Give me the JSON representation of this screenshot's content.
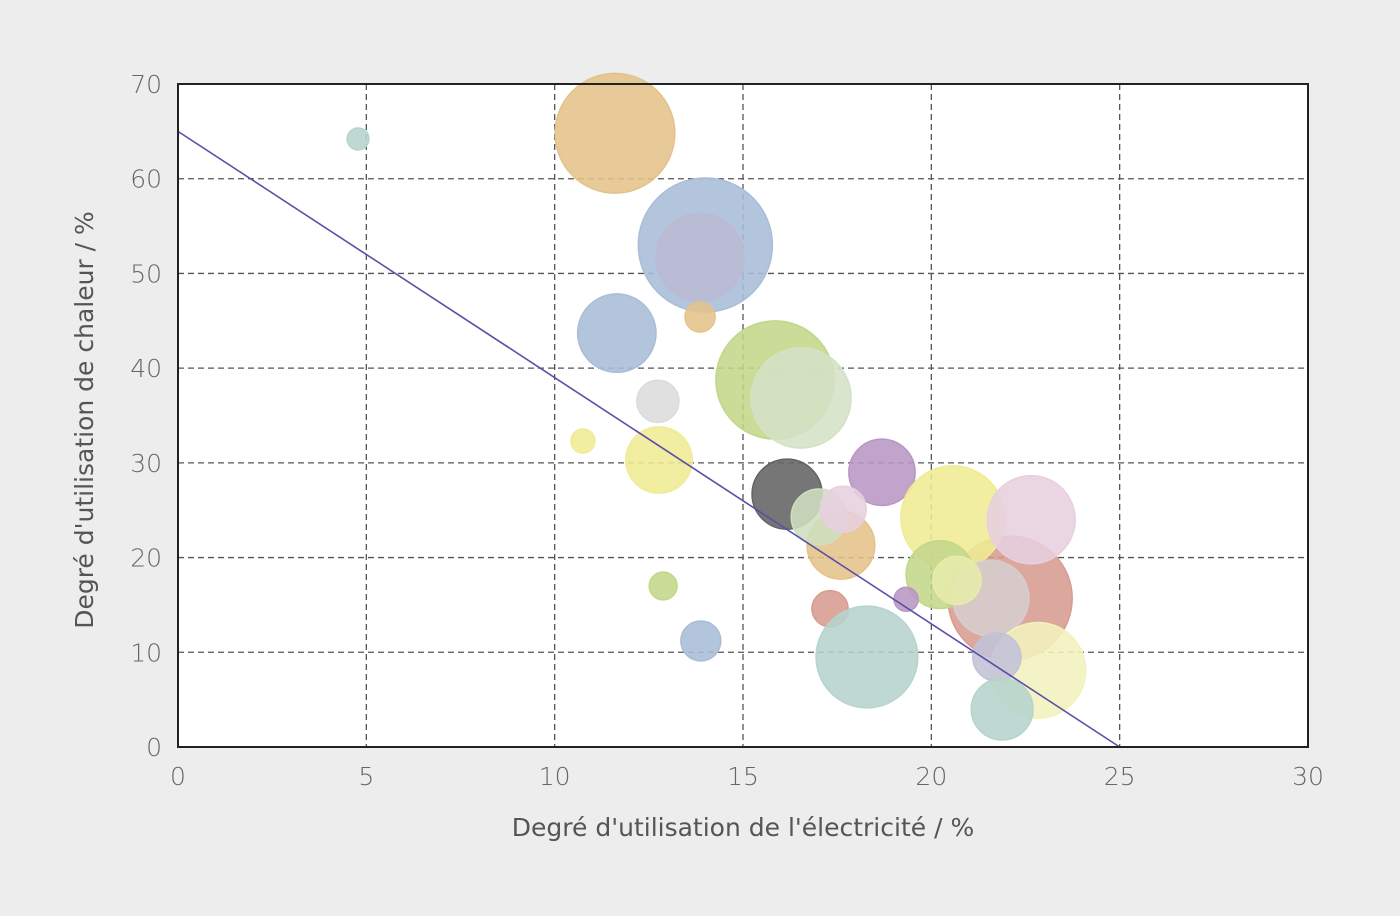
{
  "chart_data": {
    "type": "scatter",
    "subtype": "bubble",
    "xlabel": "Degré d'utilisation de l'électricité / %",
    "ylabel": "Degré d'utilisation de chaleur / %",
    "xlim": [
      0,
      30
    ],
    "ylim": [
      0,
      70
    ],
    "xticks": [
      "0",
      "5",
      "10",
      "15",
      "20",
      "25",
      "30"
    ],
    "yticks": [
      "0",
      "10",
      "20",
      "30",
      "40",
      "50",
      "60",
      "70"
    ],
    "grid": true,
    "grid_style": "dashed",
    "legend": "none",
    "trend_line": {
      "from": [
        0,
        65
      ],
      "to": [
        25,
        0
      ],
      "color": "#5a4fa8"
    },
    "bubbles": [
      {
        "x": 4.78,
        "y": 64.2,
        "size": 0.29,
        "color": "#bcdad3"
      },
      {
        "x": 11.6,
        "y": 64.8,
        "size": 1.59,
        "color": "#ebc88e"
      },
      {
        "x": 14.0,
        "y": 53.0,
        "size": 1.78,
        "color": "#aec3de"
      },
      {
        "x": 13.86,
        "y": 51.7,
        "size": 1.17,
        "color": "#c0c0dc"
      },
      {
        "x": 13.86,
        "y": 45.4,
        "size": 0.4,
        "color": "#ebc88e"
      },
      {
        "x": 11.65,
        "y": 43.7,
        "size": 1.04,
        "color": "#aec3de"
      },
      {
        "x": 15.85,
        "y": 38.75,
        "size": 1.57,
        "color": "#c9dd8e"
      },
      {
        "x": 16.54,
        "y": 36.85,
        "size": 1.33,
        "color": "#dbe8cc"
      },
      {
        "x": 12.74,
        "y": 36.5,
        "size": 0.56,
        "color": "#e2e2e2"
      },
      {
        "x": 10.75,
        "y": 32.3,
        "size": 0.32,
        "color": "#f7f399"
      },
      {
        "x": 12.77,
        "y": 30.3,
        "size": 0.88,
        "color": "#f7f399"
      },
      {
        "x": 16.17,
        "y": 26.7,
        "size": 0.93,
        "color": "#666666"
      },
      {
        "x": 18.69,
        "y": 29.0,
        "size": 0.88,
        "color": "#be9bc9"
      },
      {
        "x": 17.6,
        "y": 21.3,
        "size": 0.9,
        "color": "#ebc88e"
      },
      {
        "x": 17.02,
        "y": 24.3,
        "size": 0.74,
        "color": "#d5e6c6"
      },
      {
        "x": 17.66,
        "y": 25.1,
        "size": 0.61,
        "color": "#eed6e6"
      },
      {
        "x": 22.09,
        "y": 15.7,
        "size": 1.65,
        "color": "#dea094"
      },
      {
        "x": 20.57,
        "y": 24.2,
        "size": 1.38,
        "color": "#f7f399"
      },
      {
        "x": 22.65,
        "y": 24.0,
        "size": 1.17,
        "color": "#eed6e6"
      },
      {
        "x": 20.23,
        "y": 18.2,
        "size": 0.9,
        "color": "#c9dd8e"
      },
      {
        "x": 21.58,
        "y": 15.7,
        "size": 1.01,
        "color": "#ddd4d4"
      },
      {
        "x": 20.68,
        "y": 17.6,
        "size": 0.64,
        "color": "#eef3b0"
      },
      {
        "x": 19.33,
        "y": 15.6,
        "size": 0.32,
        "color": "#be9bc9"
      },
      {
        "x": 17.31,
        "y": 14.6,
        "size": 0.48,
        "color": "#dea094"
      },
      {
        "x": 18.29,
        "y": 9.5,
        "size": 1.35,
        "color": "#bcdad3"
      },
      {
        "x": 22.83,
        "y": 8.1,
        "size": 1.27,
        "color": "#fbf9c4"
      },
      {
        "x": 21.74,
        "y": 9.5,
        "size": 0.64,
        "color": "#c8c8e0"
      },
      {
        "x": 21.88,
        "y": 4.0,
        "size": 0.82,
        "color": "#bcdad3"
      },
      {
        "x": 12.88,
        "y": 17.0,
        "size": 0.37,
        "color": "#c9dd8e"
      },
      {
        "x": 13.88,
        "y": 11.2,
        "size": 0.53,
        "color": "#aec3de"
      }
    ]
  }
}
